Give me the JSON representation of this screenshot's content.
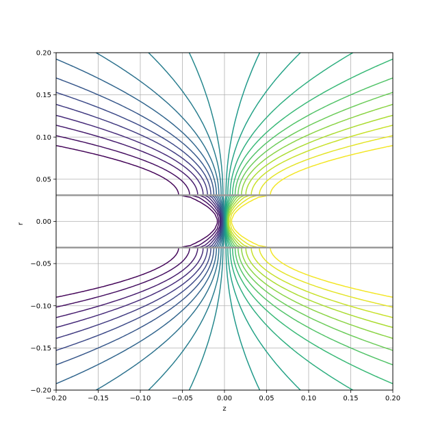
{
  "chart_data": {
    "type": "contour",
    "title": "",
    "xlabel": "z",
    "ylabel": "r",
    "xlim": [
      -0.2,
      0.2
    ],
    "ylim": [
      -0.2,
      0.2
    ],
    "xticks": [
      "−0.20",
      "−0.15",
      "−0.10",
      "−0.05",
      "0.00",
      "0.05",
      "0.10",
      "0.15",
      "0.20"
    ],
    "yticks": [
      "−0.20",
      "−0.15",
      "−0.10",
      "−0.05",
      "0.00",
      "0.05",
      "0.10",
      "0.15",
      "0.20"
    ],
    "grid": true,
    "colormap": "viridis",
    "electrodes": [
      {
        "r": 0.031,
        "z_from": -0.2,
        "z_to": 0.2,
        "color": "#999999"
      },
      {
        "r": -0.031,
        "z_from": -0.2,
        "z_to": 0.2,
        "color": "#999999"
      }
    ],
    "contour_levels": [
      -0.97,
      -0.92,
      -0.84,
      -0.75,
      -0.65,
      -0.55,
      -0.45,
      -0.35,
      -0.25,
      -0.15,
      -0.07,
      0.0,
      0.07,
      0.15,
      0.25,
      0.35,
      0.45,
      0.55,
      0.65,
      0.75,
      0.84,
      0.92,
      0.97
    ],
    "field_model": {
      "gap_half_width": 0.031,
      "falloff_length": 0.045
    }
  }
}
